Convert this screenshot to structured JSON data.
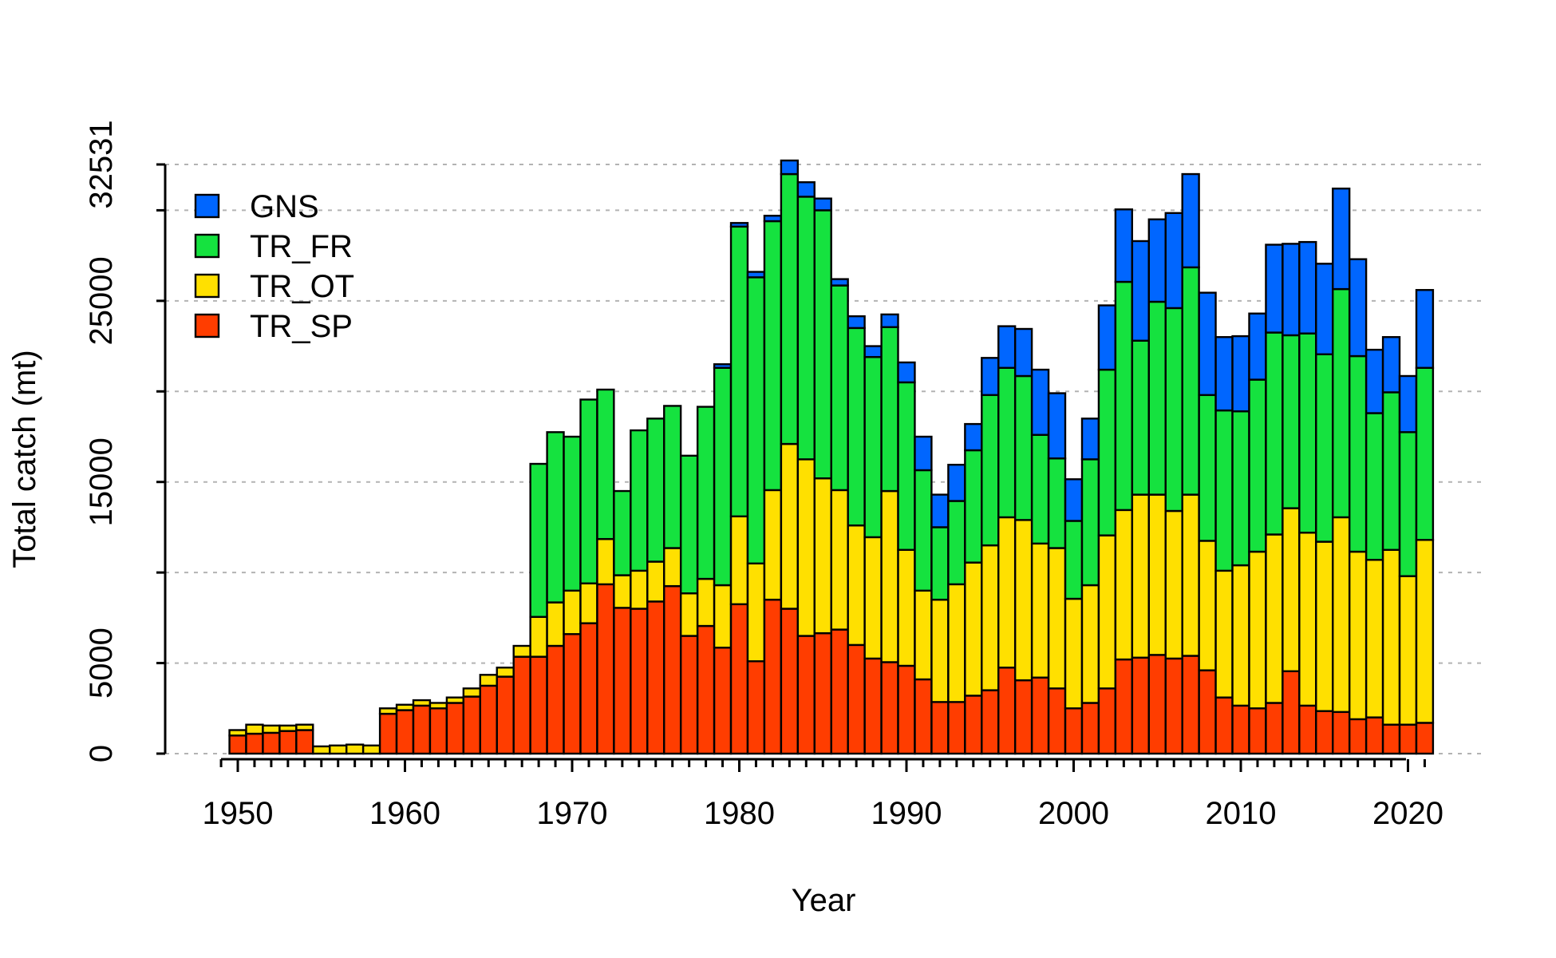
{
  "chart_data": {
    "type": "bar",
    "stacked": true,
    "xlabel": "Year",
    "ylabel": "Total catch (mt)",
    "ylim": [
      0,
      32531
    ],
    "y_ticks": [
      0,
      5000,
      15000,
      25000,
      32531
    ],
    "y_gridlines": [
      0,
      5000,
      10000,
      15000,
      20000,
      25000,
      30000,
      32531
    ],
    "x_tick_labels": [
      1950,
      1960,
      1970,
      1980,
      1990,
      2000,
      2010,
      2020
    ],
    "x_range": [
      1949,
      2021
    ],
    "grid": true,
    "legend_position": "top-left",
    "x": [
      1950,
      1951,
      1952,
      1953,
      1954,
      1955,
      1956,
      1957,
      1958,
      1959,
      1960,
      1961,
      1962,
      1963,
      1964,
      1965,
      1966,
      1967,
      1968,
      1969,
      1970,
      1971,
      1972,
      1973,
      1974,
      1975,
      1976,
      1977,
      1978,
      1979,
      1980,
      1981,
      1982,
      1983,
      1984,
      1985,
      1986,
      1987,
      1988,
      1989,
      1990,
      1991,
      1992,
      1993,
      1994,
      1995,
      1996,
      1997,
      1998,
      1999,
      2000,
      2001,
      2002,
      2003,
      2004,
      2005,
      2006,
      2007,
      2008,
      2009,
      2010,
      2011,
      2012,
      2013,
      2014,
      2015,
      2016,
      2017,
      2018,
      2019,
      2020,
      2021
    ],
    "series": [
      {
        "name": "TR_SP",
        "color": "#ff3d00",
        "values": [
          1000,
          1100,
          1150,
          1250,
          1300,
          0,
          0,
          0,
          0,
          2200,
          2400,
          2650,
          2500,
          2800,
          3150,
          3750,
          4250,
          5350,
          5350,
          5950,
          6600,
          7200,
          9350,
          8050,
          8000,
          8400,
          9250,
          6500,
          7050,
          5850,
          8250,
          5100,
          8500,
          8000,
          6500,
          6650,
          6850,
          6000,
          5250,
          5050,
          4850,
          4100,
          2850,
          2850,
          3200,
          3500,
          4750,
          4050,
          4200,
          3600,
          2500,
          2800,
          3600,
          5200,
          5300,
          5450,
          5250,
          5400,
          4600,
          3100,
          2650,
          2500,
          2800,
          4550,
          2650,
          2350,
          2300,
          1900,
          2000,
          1600,
          1600,
          1700
        ]
      },
      {
        "name": "TR_OT",
        "color": "#ffe000",
        "values": [
          300,
          500,
          400,
          300,
          300,
          400,
          450,
          500,
          450,
          300,
          300,
          300,
          300,
          300,
          450,
          600,
          500,
          600,
          2200,
          2400,
          2400,
          2200,
          2500,
          1800,
          2100,
          2200,
          2100,
          2350,
          2600,
          3450,
          4850,
          5400,
          6050,
          9100,
          9750,
          8550,
          7700,
          6600,
          6700,
          9450,
          6400,
          4900,
          5650,
          6500,
          7350,
          8000,
          8300,
          8850,
          7400,
          7750,
          6050,
          6500,
          8450,
          8250,
          9000,
          8850,
          8150,
          8900,
          7150,
          7000,
          7750,
          8650,
          9300,
          9000,
          9550,
          9350,
          10750,
          9250,
          8700,
          9650,
          8200,
          10100
        ]
      },
      {
        "name": "TR_FR",
        "color": "#15e23f",
        "values": [
          0,
          0,
          0,
          0,
          0,
          0,
          0,
          0,
          0,
          0,
          0,
          0,
          0,
          0,
          0,
          0,
          0,
          0,
          8450,
          9400,
          8500,
          10150,
          8250,
          4650,
          7750,
          7900,
          7850,
          7600,
          9500,
          12000,
          16000,
          15800,
          14850,
          14900,
          14500,
          14800,
          11300,
          10900,
          9950,
          9050,
          9250,
          6650,
          4000,
          4600,
          6200,
          8300,
          8250,
          7950,
          6000,
          4950,
          4300,
          6950,
          9150,
          12600,
          8500,
          10650,
          11200,
          12550,
          8050,
          8850,
          8500,
          9500,
          11150,
          9550,
          11000,
          10350,
          12600,
          10800,
          8100,
          8700,
          7950,
          9500
        ]
      },
      {
        "name": "GNS",
        "color": "#0066ff",
        "values": [
          0,
          0,
          0,
          0,
          0,
          0,
          0,
          0,
          0,
          0,
          0,
          0,
          0,
          0,
          0,
          0,
          0,
          0,
          0,
          0,
          0,
          0,
          0,
          0,
          0,
          0,
          0,
          0,
          0,
          200,
          200,
          300,
          300,
          750,
          800,
          650,
          350,
          650,
          600,
          700,
          1100,
          1850,
          1800,
          2000,
          1450,
          2050,
          2300,
          2600,
          3600,
          3600,
          2300,
          2250,
          3550,
          4000,
          5500,
          4550,
          5250,
          5150,
          5650,
          4050,
          4150,
          3650,
          4850,
          5050,
          5050,
          5000,
          5550,
          5350,
          3500,
          3050,
          3100,
          4300
        ]
      }
    ]
  },
  "legend": {
    "items": [
      {
        "label": "GNS",
        "color": "#0066ff"
      },
      {
        "label": "TR_FR",
        "color": "#15e23f"
      },
      {
        "label": "TR_OT",
        "color": "#ffe000"
      },
      {
        "label": "TR_SP",
        "color": "#ff3d00"
      }
    ]
  }
}
